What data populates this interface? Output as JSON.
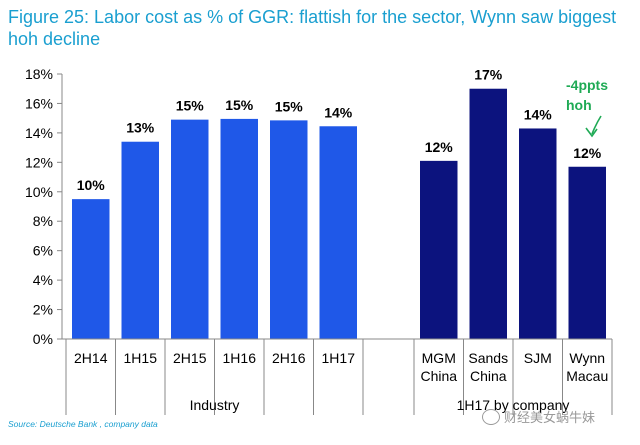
{
  "title": "Figure 25: Labor cost as % of GGR: flattish for the sector, Wynn saw biggest hoh decline",
  "source": "Source: Deutsche Bank , company data",
  "watermark": "财经美女蜗牛妹",
  "colors": {
    "industry": "#1f58e8",
    "company": "#0c137e",
    "title": "#1a9fd0",
    "annotation": "#1faa55"
  },
  "chart_data": {
    "type": "bar",
    "title": "Figure 25: Labor cost as % of GGR: flattish for the sector, Wynn saw biggest hoh decline",
    "ylim": [
      0,
      18
    ],
    "yticks": [
      "0%",
      "2%",
      "4%",
      "6%",
      "8%",
      "10%",
      "12%",
      "14%",
      "16%",
      "18%"
    ],
    "groups": [
      {
        "name": "Industry",
        "categories": [
          "2H14",
          "1H15",
          "2H15",
          "1H16",
          "2H16",
          "1H17"
        ],
        "values": [
          9.5,
          13.4,
          14.9,
          14.95,
          14.85,
          14.45
        ],
        "labels": [
          "10%",
          "13%",
          "15%",
          "15%",
          "15%",
          "14%"
        ]
      },
      {
        "name": "1H17 by company",
        "categories": [
          [
            "MGM",
            "China"
          ],
          [
            "Sands",
            "China"
          ],
          [
            "SJM"
          ],
          [
            "Wynn",
            "Macau"
          ]
        ],
        "values": [
          12.1,
          17.0,
          14.3,
          11.7
        ],
        "labels": [
          "12%",
          "17%",
          "14%",
          "12%"
        ]
      }
    ],
    "annotation": [
      "-4ppts",
      "hoh"
    ]
  }
}
